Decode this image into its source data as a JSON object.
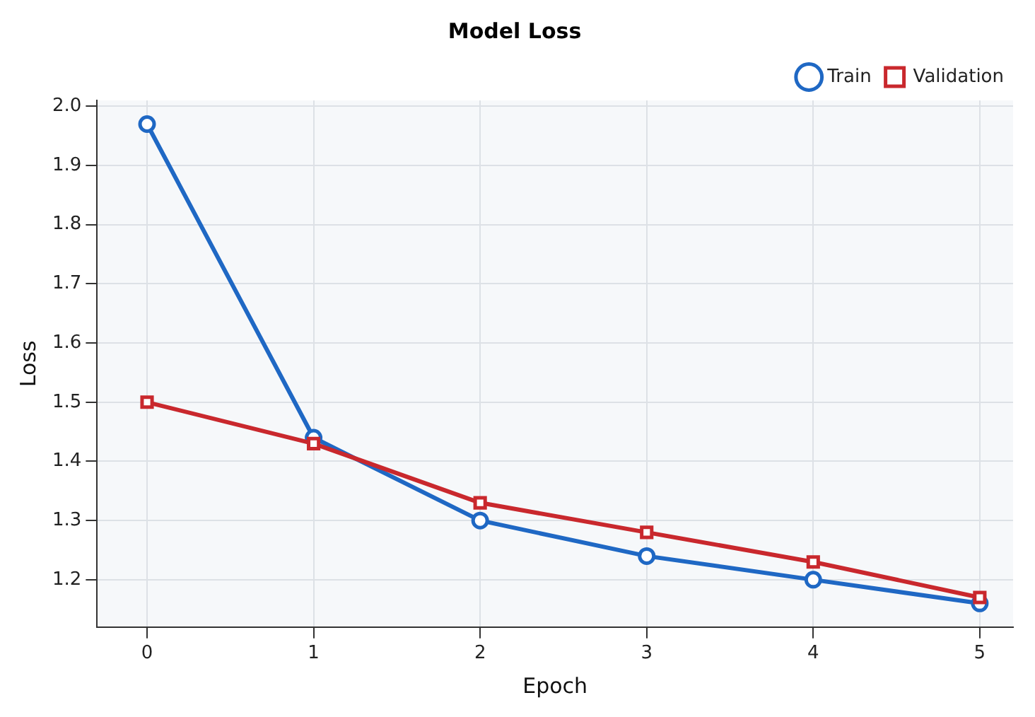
{
  "chart_data": {
    "type": "line",
    "title": "Model Loss",
    "xlabel": "Epoch",
    "ylabel": "Loss",
    "x": [
      0,
      1,
      2,
      3,
      4,
      5
    ],
    "series": [
      {
        "name": "Train",
        "color": "#1f68c4",
        "marker": "circle",
        "values": [
          1.97,
          1.44,
          1.3,
          1.24,
          1.2,
          1.16
        ]
      },
      {
        "name": "Validation",
        "color": "#c9282d",
        "marker": "square",
        "values": [
          1.5,
          1.43,
          1.33,
          1.28,
          1.23,
          1.17
        ]
      }
    ],
    "xlim": [
      -0.3,
      5.2
    ],
    "xticks": [
      0,
      1,
      2,
      3,
      4,
      5
    ],
    "ylim": [
      1.12,
      2.01
    ],
    "yticks": [
      1.2,
      1.3,
      1.4,
      1.5,
      1.6,
      1.7,
      1.8,
      1.9,
      {
        "value": 2,
        "label": "2.0"
      }
    ],
    "grid": true,
    "legend": "top right",
    "line_style": "solid"
  }
}
